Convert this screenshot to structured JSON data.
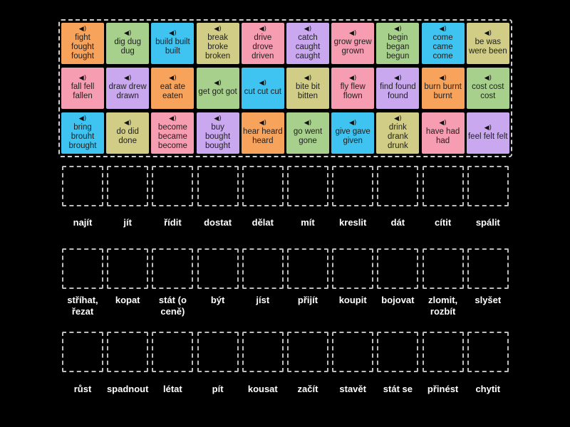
{
  "colors": {
    "orange": "#f7a35c",
    "green": "#a8d08d",
    "blue": "#3fc3f0",
    "khaki": "#d1cd86",
    "pink": "#f79db1",
    "purple": "#c9a8f0"
  },
  "speaker_icon": "speaker-icon",
  "cards": [
    {
      "text": "fight fought fought",
      "color": "orange"
    },
    {
      "text": "dig dug dug",
      "color": "green"
    },
    {
      "text": "build built built",
      "color": "blue"
    },
    {
      "text": "break broke broken",
      "color": "khaki"
    },
    {
      "text": "drive drove driven",
      "color": "pink"
    },
    {
      "text": "catch caught caught",
      "color": "purple"
    },
    {
      "text": "grow grew grown",
      "color": "pink"
    },
    {
      "text": "begin began begun",
      "color": "green"
    },
    {
      "text": "come came come",
      "color": "blue"
    },
    {
      "text": "be was were been",
      "color": "khaki"
    },
    {
      "text": "fall fell fallen",
      "color": "pink"
    },
    {
      "text": "draw drew drawn",
      "color": "purple"
    },
    {
      "text": "eat ate eaten",
      "color": "orange"
    },
    {
      "text": "get got got",
      "color": "green"
    },
    {
      "text": "cut cut cut",
      "color": "blue"
    },
    {
      "text": "bite bit bitten",
      "color": "khaki"
    },
    {
      "text": "fly flew flown",
      "color": "pink"
    },
    {
      "text": "find found found",
      "color": "purple"
    },
    {
      "text": "burn burnt burnt",
      "color": "orange"
    },
    {
      "text": "cost cost cost",
      "color": "green"
    },
    {
      "text": "bring brouht brought",
      "color": "blue"
    },
    {
      "text": "do did done",
      "color": "khaki"
    },
    {
      "text": "become became become",
      "color": "pink"
    },
    {
      "text": "buy bought bought",
      "color": "purple"
    },
    {
      "text": "hear heard heard",
      "color": "orange"
    },
    {
      "text": "go went gone",
      "color": "green"
    },
    {
      "text": "give gave given",
      "color": "blue"
    },
    {
      "text": "drink drank drunk",
      "color": "khaki"
    },
    {
      "text": "have had had",
      "color": "pink"
    },
    {
      "text": "feel felt felt",
      "color": "purple"
    }
  ],
  "labels": [
    "najít",
    "jít",
    "řídit",
    "dostat",
    "dělat",
    "mít",
    "kreslit",
    "dát",
    "cítit",
    "spálit",
    "stříhat, řezat",
    "kopat",
    "stát (o ceně)",
    "být",
    "jíst",
    "přijít",
    "koupit",
    "bojovat",
    "zlomit, rozbít",
    "slyšet",
    "růst",
    "spadnout",
    "létat",
    "pít",
    "kousat",
    "začít",
    "stavět",
    "stát se",
    "přinést",
    "chytit"
  ]
}
